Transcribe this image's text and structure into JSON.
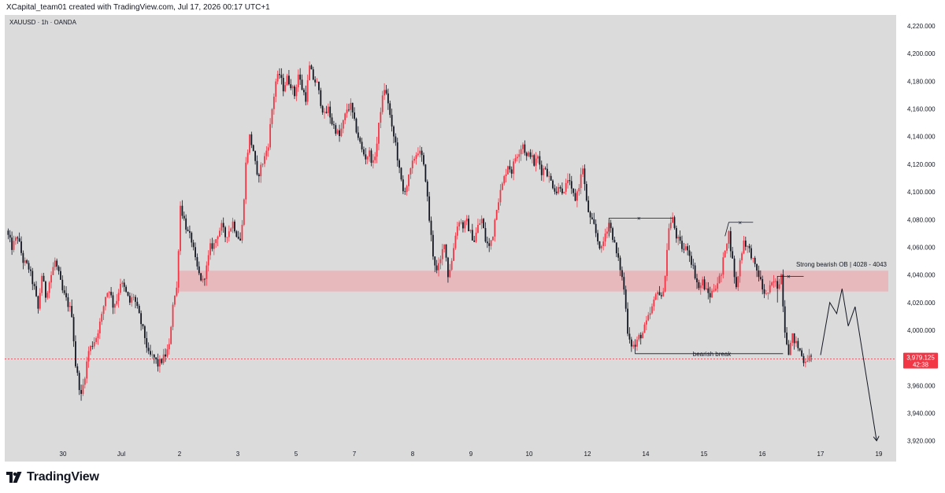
{
  "header": {
    "credit": "XCapital_team01 created with TradingView.com, Jul 17, 2026 00:17 UTC+1"
  },
  "footer": {
    "brand": "TradingView",
    "logo_icon": "tradingview-logo-icon"
  },
  "colors": {
    "background": "#dbdbdb",
    "bull": "#f23645",
    "bear": "#131722",
    "zone": "#e8b4b8",
    "price_badge": "#f23645"
  },
  "chart_data": {
    "type": "candlestick",
    "title": "XAUUSD · 1h · OANDA",
    "symbol": "XAUUSD",
    "timeframe": "1h",
    "broker": "OANDA",
    "ylim": [
      3905,
      4228
    ],
    "yticks": [
      "4,220.000",
      "4,200.000",
      "4,180.000",
      "4,160.000",
      "4,140.000",
      "4,120.000",
      "4,100.000",
      "4,080.000",
      "4,060.000",
      "4,040.000",
      "4,020.000",
      "4,000.000",
      "3,980.000",
      "3,960.000",
      "3,940.000",
      "3,920.000"
    ],
    "xticks": [
      "30",
      "Jul",
      "2",
      "3",
      "5",
      "7",
      "8",
      "9",
      "10",
      "12",
      "14",
      "15",
      "16",
      "17",
      "19"
    ],
    "last_price": "3,979.125",
    "countdown": "42:38",
    "zone": {
      "low": 4028,
      "high": 4043,
      "label": "Strong bearish OB | 4028 - 4043"
    },
    "annotations": {
      "bearish_break": "bearish break",
      "mark_x": "×"
    },
    "series_path": [
      [
        0,
        4072
      ],
      [
        3,
        4060
      ],
      [
        6,
        4068
      ],
      [
        9,
        4050
      ],
      [
        12,
        4045
      ],
      [
        15,
        4030
      ],
      [
        17,
        4015
      ],
      [
        19,
        4040
      ],
      [
        21,
        4025
      ],
      [
        23,
        4035
      ],
      [
        26,
        4050
      ],
      [
        28,
        4040
      ],
      [
        30,
        4028
      ],
      [
        32,
        4022
      ],
      [
        35,
        4012
      ],
      [
        37,
        3975
      ],
      [
        40,
        3952
      ],
      [
        42,
        3968
      ],
      [
        44,
        3985
      ],
      [
        46,
        3990
      ],
      [
        48,
        3995
      ],
      [
        51,
        4010
      ],
      [
        53,
        4025
      ],
      [
        55,
        4030
      ],
      [
        57,
        4018
      ],
      [
        59,
        4022
      ],
      [
        61,
        4035
      ],
      [
        63,
        4030
      ],
      [
        66,
        4020
      ],
      [
        68,
        4025
      ],
      [
        70,
        4015
      ],
      [
        72,
        4005
      ],
      [
        74,
        3995
      ],
      [
        76,
        3982
      ],
      [
        79,
        3980
      ],
      [
        81,
        3975
      ],
      [
        83,
        3978
      ],
      [
        85,
        3982
      ],
      [
        87,
        3988
      ],
      [
        89,
        4020
      ],
      [
        91,
        4030
      ],
      [
        93,
        4090
      ],
      [
        95,
        4080
      ],
      [
        97,
        4070
      ],
      [
        99,
        4065
      ],
      [
        101,
        4050
      ],
      [
        103,
        4040
      ],
      [
        105,
        4035
      ],
      [
        107,
        4045
      ],
      [
        109,
        4060
      ],
      [
        111,
        4062
      ],
      [
        113,
        4070
      ],
      [
        115,
        4075
      ],
      [
        117,
        4068
      ],
      [
        119,
        4072
      ],
      [
        121,
        4078
      ],
      [
        123,
        4070
      ],
      [
        125,
        4065
      ],
      [
        126,
        4075
      ],
      [
        128,
        4120
      ],
      [
        130,
        4140
      ],
      [
        132,
        4130
      ],
      [
        134,
        4110
      ],
      [
        136,
        4118
      ],
      [
        138,
        4125
      ],
      [
        140,
        4135
      ],
      [
        142,
        4160
      ],
      [
        144,
        4180
      ],
      [
        146,
        4185
      ],
      [
        148,
        4175
      ],
      [
        150,
        4182
      ],
      [
        152,
        4178
      ],
      [
        154,
        4170
      ],
      [
        156,
        4185
      ],
      [
        158,
        4175
      ],
      [
        160,
        4168
      ],
      [
        162,
        4190
      ],
      [
        164,
        4182
      ],
      [
        166,
        4178
      ],
      [
        168,
        4165
      ],
      [
        170,
        4155
      ],
      [
        172,
        4160
      ],
      [
        174,
        4150
      ],
      [
        176,
        4145
      ],
      [
        178,
        4140
      ],
      [
        180,
        4150
      ],
      [
        182,
        4160
      ],
      [
        184,
        4162
      ],
      [
        186,
        4150
      ],
      [
        188,
        4140
      ],
      [
        190,
        4130
      ],
      [
        192,
        4125
      ],
      [
        194,
        4128
      ],
      [
        196,
        4120
      ],
      [
        198,
        4135
      ],
      [
        200,
        4160
      ],
      [
        202,
        4175
      ],
      [
        204,
        4165
      ],
      [
        206,
        4145
      ],
      [
        208,
        4135
      ],
      [
        210,
        4115
      ],
      [
        212,
        4100
      ],
      [
        214,
        4105
      ],
      [
        216,
        4115
      ],
      [
        218,
        4125
      ],
      [
        220,
        4130
      ],
      [
        222,
        4125
      ],
      [
        224,
        4110
      ],
      [
        226,
        4080
      ],
      [
        228,
        4055
      ],
      [
        230,
        4042
      ],
      [
        232,
        4050
      ],
      [
        234,
        4065
      ],
      [
        236,
        4040
      ],
      [
        238,
        4050
      ],
      [
        240,
        4070
      ],
      [
        242,
        4080
      ],
      [
        244,
        4075
      ],
      [
        246,
        4078
      ],
      [
        248,
        4070
      ],
      [
        250,
        4065
      ],
      [
        252,
        4075
      ],
      [
        254,
        4080
      ],
      [
        256,
        4065
      ],
      [
        258,
        4060
      ],
      [
        260,
        4070
      ],
      [
        262,
        4090
      ],
      [
        264,
        4100
      ],
      [
        266,
        4110
      ],
      [
        268,
        4120
      ],
      [
        270,
        4115
      ],
      [
        272,
        4125
      ],
      [
        274,
        4130
      ],
      [
        276,
        4135
      ],
      [
        278,
        4125
      ],
      [
        280,
        4128
      ],
      [
        282,
        4120
      ],
      [
        284,
        4125
      ],
      [
        286,
        4115
      ],
      [
        288,
        4118
      ],
      [
        290,
        4110
      ],
      [
        292,
        4105
      ],
      [
        294,
        4100
      ],
      [
        296,
        4105
      ],
      [
        298,
        4098
      ],
      [
        300,
        4110
      ],
      [
        302,
        4100
      ],
      [
        304,
        4095
      ],
      [
        306,
        4105
      ],
      [
        308,
        4118
      ],
      [
        310,
        4092
      ],
      [
        312,
        4080
      ],
      [
        314,
        4075
      ],
      [
        316,
        4065
      ],
      [
        318,
        4058
      ],
      [
        320,
        4070
      ],
      [
        322,
        4078
      ],
      [
        324,
        4068
      ],
      [
        326,
        4055
      ],
      [
        328,
        4045
      ],
      [
        330,
        4030
      ],
      [
        332,
        4000
      ],
      [
        334,
        3990
      ],
      [
        336,
        3988
      ],
      [
        338,
        3995
      ],
      [
        340,
        3998
      ],
      [
        342,
        4005
      ],
      [
        344,
        4012
      ],
      [
        346,
        4020
      ],
      [
        348,
        4030
      ],
      [
        350,
        4022
      ],
      [
        352,
        4040
      ],
      [
        354,
        4075
      ],
      [
        356,
        4080
      ],
      [
        358,
        4068
      ],
      [
        360,
        4062
      ],
      [
        362,
        4058
      ],
      [
        364,
        4060
      ],
      [
        366,
        4050
      ],
      [
        368,
        4040
      ],
      [
        370,
        4030
      ],
      [
        372,
        4035
      ],
      [
        374,
        4028
      ],
      [
        376,
        4025
      ],
      [
        378,
        4030
      ],
      [
        380,
        4035
      ],
      [
        382,
        4040
      ],
      [
        384,
        4060
      ],
      [
        386,
        4070
      ],
      [
        388,
        4050
      ],
      [
        390,
        4030
      ],
      [
        392,
        4050
      ],
      [
        394,
        4065
      ],
      [
        396,
        4060
      ],
      [
        398,
        4055
      ],
      [
        400,
        4045
      ],
      [
        402,
        4040
      ],
      [
        404,
        4030
      ],
      [
        406,
        4025
      ],
      [
        408,
        4030
      ],
      [
        410,
        4035
      ],
      [
        412,
        4032
      ],
      [
        414,
        4040
      ],
      [
        416,
        4000
      ],
      [
        418,
        3985
      ],
      [
        420,
        3995
      ],
      [
        422,
        3990
      ],
      [
        424,
        3985
      ],
      [
        426,
        3978
      ],
      [
        428,
        3980
      ],
      [
        430,
        3979
      ]
    ],
    "projection": [
      [
        3.5,
        3982
      ],
      [
        4.1,
        4020
      ],
      [
        4.55,
        4012
      ],
      [
        4.9,
        4030
      ],
      [
        5.3,
        4003
      ],
      [
        5.75,
        4017
      ],
      [
        7.15,
        3920
      ]
    ]
  }
}
